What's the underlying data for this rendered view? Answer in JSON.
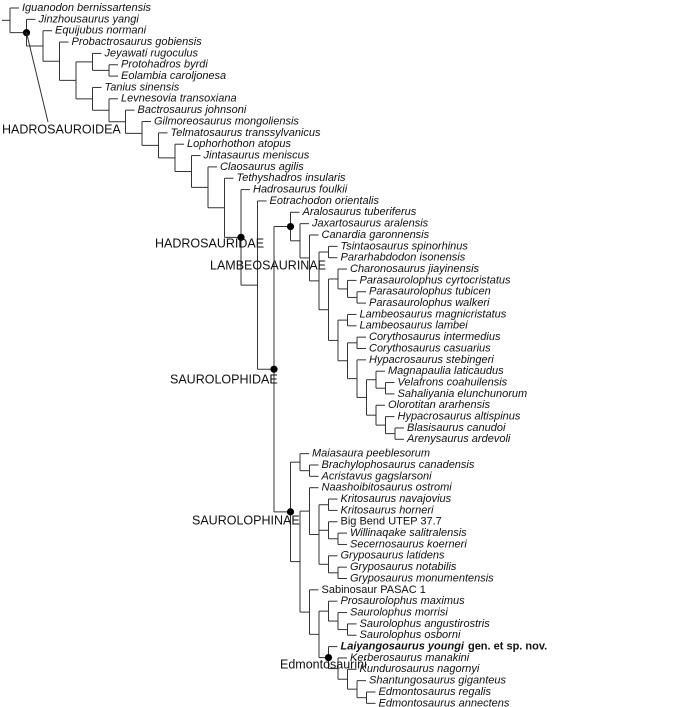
{
  "taxa": [
    "Iguanodon bernissartensis",
    "Jinzhousaurus yangi",
    "Equijubus normani",
    "Probactrosaurus gobiensis",
    "Jeyawati rugoculus",
    "Protohadros byrdi",
    "Eolambia caroljonesa",
    "Tanius sinensis",
    "Levnesovia transoxiana",
    "Bactrosaurus johnsoni",
    "Gilmoreosaurus mongoliensis",
    "Telmatosaurus transsylvanicus",
    "Lophorhothon atopus",
    "Jintasaurus meniscus",
    "Claosaurus agilis",
    "Tethyshadros insularis",
    "Hadrosaurus foulkii",
    "Eotrachodon orientalis",
    "Aralosaurus tuberiferus",
    "Jaxartosaurus aralensis",
    "Canardia garonnensis",
    "Tsintaosaurus spinorhinus",
    "Pararhabdodon isonensis",
    "Charonosaurus jiayinensis",
    "Parasaurolophus cyrtocristatus",
    "Parasaurolophus tubicen",
    "Parasaurolophus walkeri",
    "Lambeosaurus magnicristatus",
    "Lambeosaurus lambei",
    "Corythosaurus intermedius",
    "Corythosaurus casuarius",
    "Hypacrosaurus stebingeri",
    "Magnapaulia laticaudus",
    "Velafrons coahuilensis",
    "Sahaliyania elunchunorum",
    "Olorotitan ararhensis",
    "Hypacrosaurus altispinus",
    "Blasisaurus canudoi",
    "Arenysaurus ardevoli",
    "Maiasaura peeblesorum",
    "Brachylophosaurus canadensis",
    "Acristavus gagslarsoni",
    "Naashoibitosaurus ostromi",
    "Kritosaurus navajovius",
    "Kritosaurus horneri",
    "Big Bend UTEP 37.7",
    "Willinaqake salitralensis",
    "Secernosaurus koerneri",
    "Gryposaurus latidens",
    "Gryposaurus notabilis",
    "Gryposaurus monumentensis",
    "Sabinosaur PASAC 1",
    "Prosaurolophus maximus",
    "Saurolophus morrisi",
    "Saurolophus angustirostris",
    "Saurolophus osborni",
    {
      "name": "Laiyangosaurus youngi",
      "note": "gen. et sp. nov."
    },
    "Kerberosaurus manakini",
    "Kundurosaurus nagornyi",
    "Shantungosaurus giganteus",
    "Edmontosaurus regalis",
    "Edmontosaurus annectens"
  ],
  "clades": {
    "hadrosauroidea": "HADROSAUROIDEA",
    "hadrosauridae": "HADROSAURIDAE",
    "lambeosaurinae": "LAMBEOSAURINAE",
    "saurolophidae": "SAUROLOPHIDAE",
    "saurolophinae": "SAUROLOPHINAE",
    "edmontosaurini": "Edmontosaurini"
  }
}
